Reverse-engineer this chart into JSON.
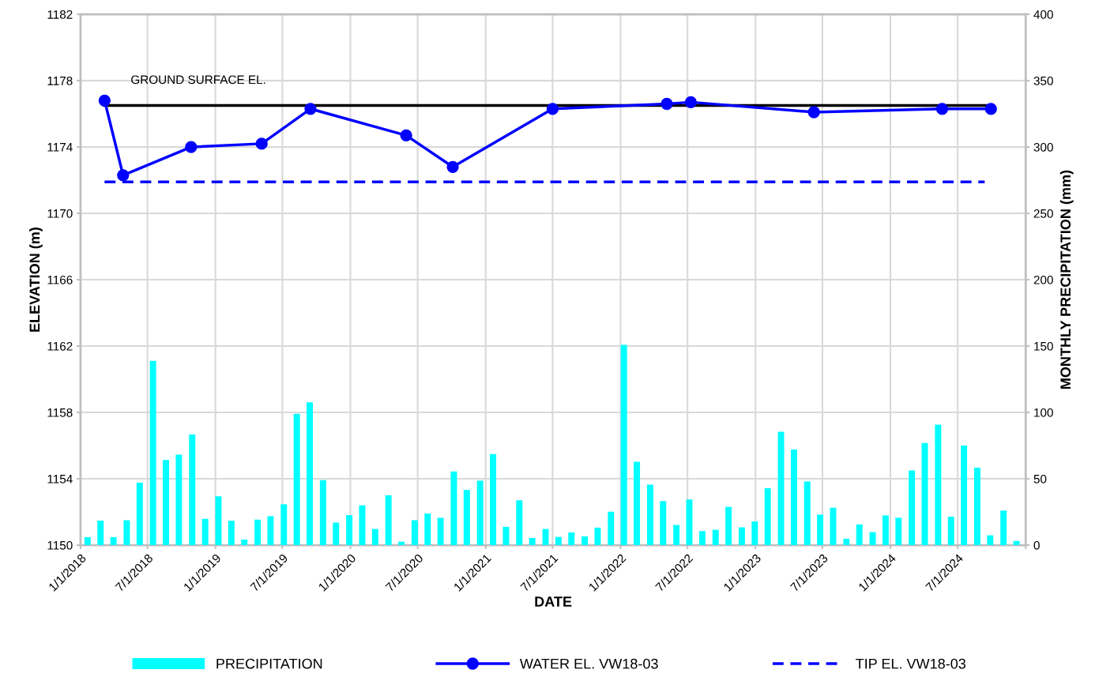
{
  "chart_data": {
    "type": "line",
    "xlabel": "DATE",
    "ylabel": "ELEVATION (m)",
    "y2label": "MONTHLY PRECIPITATION (mm)",
    "series": [
      {
        "name": "PRECIPITATION",
        "type": "bar",
        "axis": "y2",
        "color": "#00ffff",
        "x": [
          "2018-01-20",
          "2018-02-24",
          "2018-03-31",
          "2018-05-06",
          "2018-06-10",
          "2018-07-16",
          "2018-08-20",
          "2018-09-24",
          "2018-10-30",
          "2018-12-04",
          "2019-01-09",
          "2019-02-13",
          "2019-03-20",
          "2019-04-25",
          "2019-05-30",
          "2019-07-05",
          "2019-08-09",
          "2019-09-13",
          "2019-10-19",
          "2019-11-23",
          "2019-12-29",
          "2020-02-02",
          "2020-03-08",
          "2020-04-13",
          "2020-05-18",
          "2020-06-23",
          "2020-07-28",
          "2020-09-01",
          "2020-10-07",
          "2020-11-11",
          "2020-12-17",
          "2021-01-21",
          "2021-02-25",
          "2021-04-02",
          "2021-05-07",
          "2021-06-12",
          "2021-07-17",
          "2021-08-21",
          "2021-09-26",
          "2021-10-31",
          "2021-12-06",
          "2022-01-10",
          "2022-02-14",
          "2022-03-22",
          "2022-04-26",
          "2022-06-01",
          "2022-07-06",
          "2022-08-10",
          "2022-09-15",
          "2022-10-20",
          "2022-11-25",
          "2022-12-30",
          "2023-02-03",
          "2023-03-11",
          "2023-04-15",
          "2023-05-21",
          "2023-06-25",
          "2023-07-30",
          "2023-09-04",
          "2023-10-09",
          "2023-11-14",
          "2023-12-19",
          "2024-01-23",
          "2024-02-28",
          "2024-04-03",
          "2024-05-09",
          "2024-06-13",
          "2024-07-18",
          "2024-08-23",
          "2024-09-27",
          "2024-11-02",
          "2024-12-07"
        ],
        "values": [
          6,
          18.4,
          6,
          18.8,
          47,
          138.8,
          64.2,
          68.2,
          83.4,
          19.8,
          36.8,
          18.4,
          4.2,
          19.2,
          21.8,
          30.8,
          99,
          107.6,
          49,
          17,
          22.6,
          30,
          12.2,
          37.6,
          2.6,
          18.8,
          23.8,
          20.6,
          55.6,
          41.6,
          48.6,
          68.6,
          13.8,
          33.8,
          5.4,
          12.2,
          6.2,
          9.6,
          6.6,
          13.2,
          25.2,
          151,
          62.8,
          45.6,
          33.2,
          15.2,
          34.4,
          10.6,
          11.6,
          28.8,
          13.4,
          17.8,
          43,
          85.4,
          72,
          48,
          23,
          28.2,
          4.8,
          15.6,
          9.8,
          22.4,
          20.6,
          56.2,
          77,
          90.8,
          21.4,
          75,
          58.4,
          7.4,
          26,
          3.2
        ]
      },
      {
        "color": "#000000",
        "x": [
          "2018-03-07",
          "2024-09-29"
        ],
        "values": [
          1176.5,
          1176.5
        ]
      },
      {
        "name": "WATER EL. VW18-03",
        "color": "#0000ff",
        "marker": "circle",
        "x": [
          "2018-03-07",
          "2018-04-26",
          "2018-10-27",
          "2019-05-06",
          "2019-09-15",
          "2020-05-31",
          "2020-10-04",
          "2021-07-01",
          "2022-05-06",
          "2022-07-10",
          "2023-06-08",
          "2024-05-20",
          "2024-09-29"
        ],
        "values": [
          1176.8,
          1172.3,
          1174.0,
          1174.2,
          1176.3,
          1174.7,
          1172.8,
          1176.3,
          1176.6,
          1176.7,
          1176.1,
          1176.3,
          1176.3
        ]
      },
      {
        "name": "TIP EL. VW18-03",
        "color": "#0000ff",
        "line_style": "dashed",
        "x": [
          "2018-03-07",
          "2024-09-12"
        ],
        "values": [
          1171.9,
          1171.9
        ]
      }
    ],
    "annotations": [
      "GROUND SURFACE EL."
    ],
    "xlim": [
      "2018-01-01",
      "2025-01-01"
    ],
    "xticks": [
      {
        "value": "2018-01-01",
        "label": "1/1/2018"
      },
      {
        "value": "2018-07-01",
        "label": "7/1/2018"
      },
      {
        "value": "2019-01-01",
        "label": "1/1/2019"
      },
      {
        "value": "2019-07-01",
        "label": "7/1/2019"
      },
      {
        "value": "2020-01-01",
        "label": "1/1/2020"
      },
      {
        "value": "2020-07-01",
        "label": "7/1/2020"
      },
      {
        "value": "2021-01-01",
        "label": "1/1/2021"
      },
      {
        "value": "2021-07-01",
        "label": "7/1/2021"
      },
      {
        "value": "2022-01-01",
        "label": "1/1/2022"
      },
      {
        "value": "2022-07-01",
        "label": "7/1/2022"
      },
      {
        "value": "2023-01-01",
        "label": "1/1/2023"
      },
      {
        "value": "2023-07-01",
        "label": "7/1/2023"
      },
      {
        "value": "2024-01-01",
        "label": "1/1/2024"
      },
      {
        "value": "2024-07-01",
        "label": "7/1/2024"
      },
      {
        "value": "2025-01-01",
        "label": null
      }
    ],
    "ylim": [
      1150,
      1182
    ],
    "yticks": [
      1150,
      1154,
      1158,
      1162,
      1166,
      1170,
      1174,
      1178,
      1182
    ],
    "y2lim": [
      0,
      400
    ],
    "y2ticks": [
      0,
      50,
      100,
      150,
      200,
      250,
      300,
      350,
      400
    ],
    "grid": true,
    "legend": "bottom"
  }
}
